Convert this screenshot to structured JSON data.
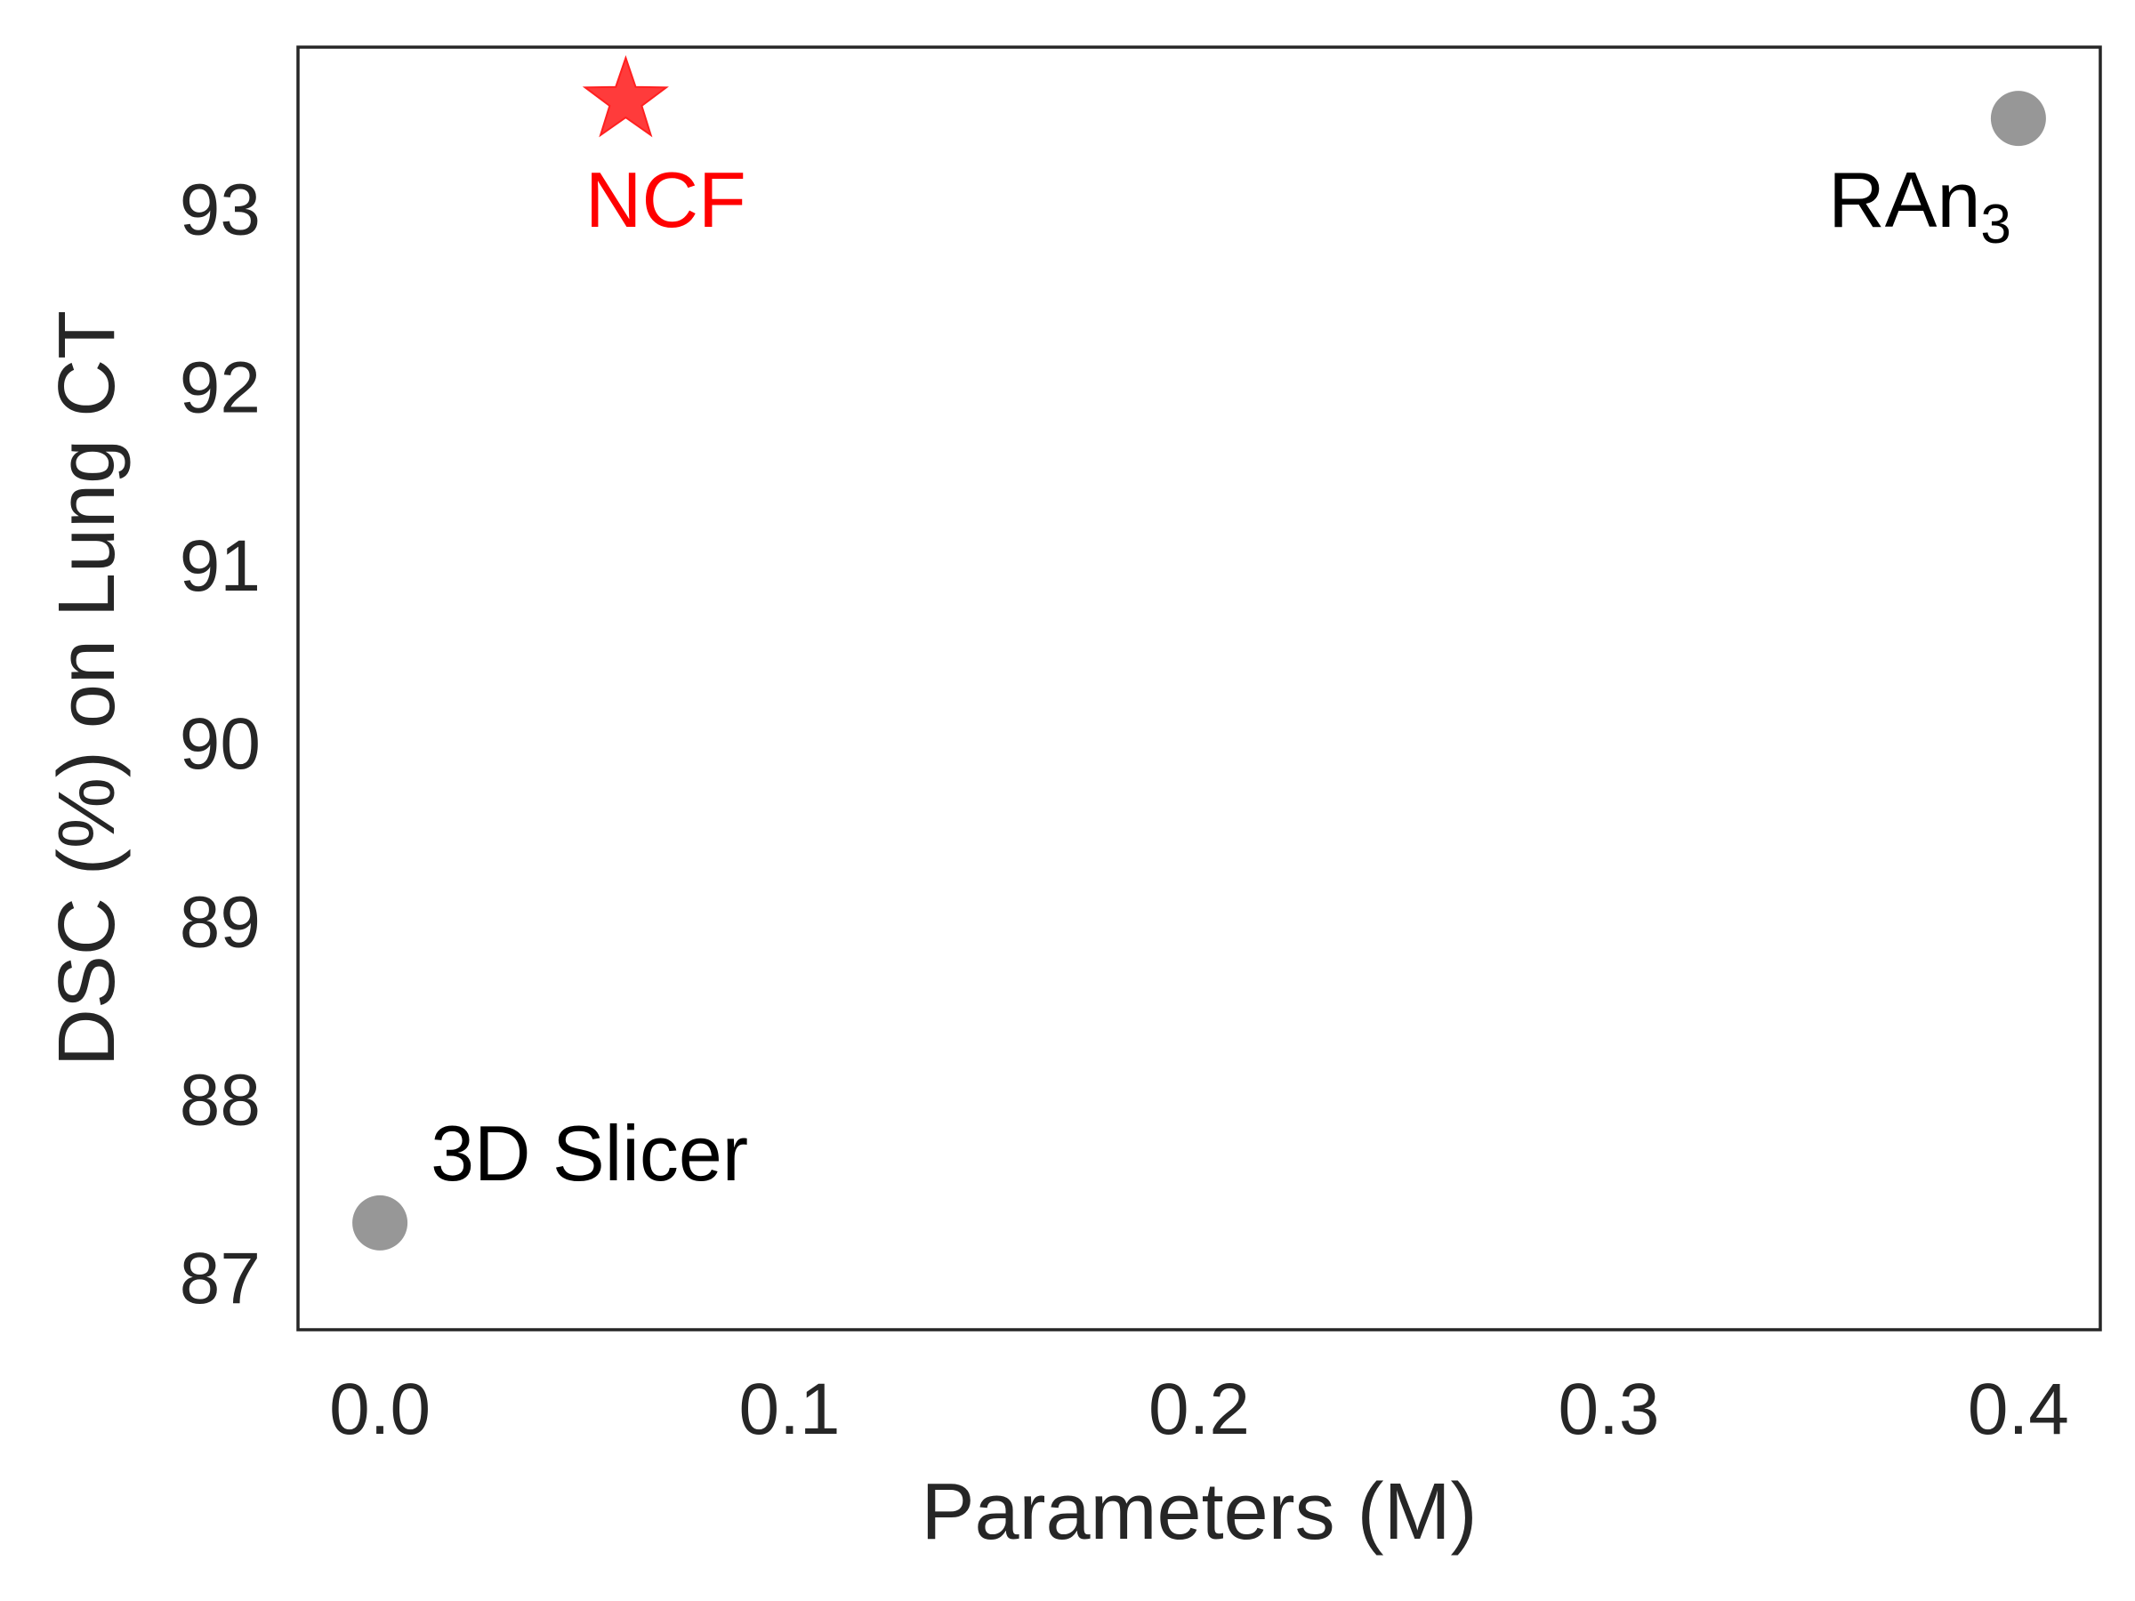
{
  "chart_data": {
    "type": "scatter",
    "title": "",
    "xlabel": "Parameters (M)",
    "ylabel": "DSC (%) on Lung CT",
    "xlim": [
      -0.02,
      0.42
    ],
    "ylim": [
      86.7,
      93.9
    ],
    "xticks": [
      {
        "value": 0.0,
        "label": "0.0"
      },
      {
        "value": 0.1,
        "label": "0.1"
      },
      {
        "value": 0.2,
        "label": "0.2"
      },
      {
        "value": 0.3,
        "label": "0.3"
      },
      {
        "value": 0.4,
        "label": "0.4"
      }
    ],
    "yticks": [
      {
        "value": 87,
        "label": "87"
      },
      {
        "value": 88,
        "label": "88"
      },
      {
        "value": 89,
        "label": "89"
      },
      {
        "value": 90,
        "label": "90"
      },
      {
        "value": 91,
        "label": "91"
      },
      {
        "value": 92,
        "label": "92"
      },
      {
        "value": 93,
        "label": "93"
      }
    ],
    "grid": false,
    "points": [
      {
        "label": "3D Slicer",
        "x": 0.0,
        "y": 87.3,
        "marker": "circle",
        "color": "#8c8c8c",
        "label_color": "#000000",
        "label_position": "upper-right",
        "subscript": ""
      },
      {
        "label": "NCF",
        "x": 0.06,
        "y": 93.6,
        "marker": "star",
        "color": "#ff2020",
        "label_color": "#ff0000",
        "label_position": "below",
        "subscript": ""
      },
      {
        "label": "RAn",
        "x": 0.4,
        "y": 93.5,
        "marker": "circle",
        "color": "#8c8c8c",
        "label_color": "#000000",
        "label_position": "lower-left",
        "subscript": "3"
      }
    ]
  }
}
